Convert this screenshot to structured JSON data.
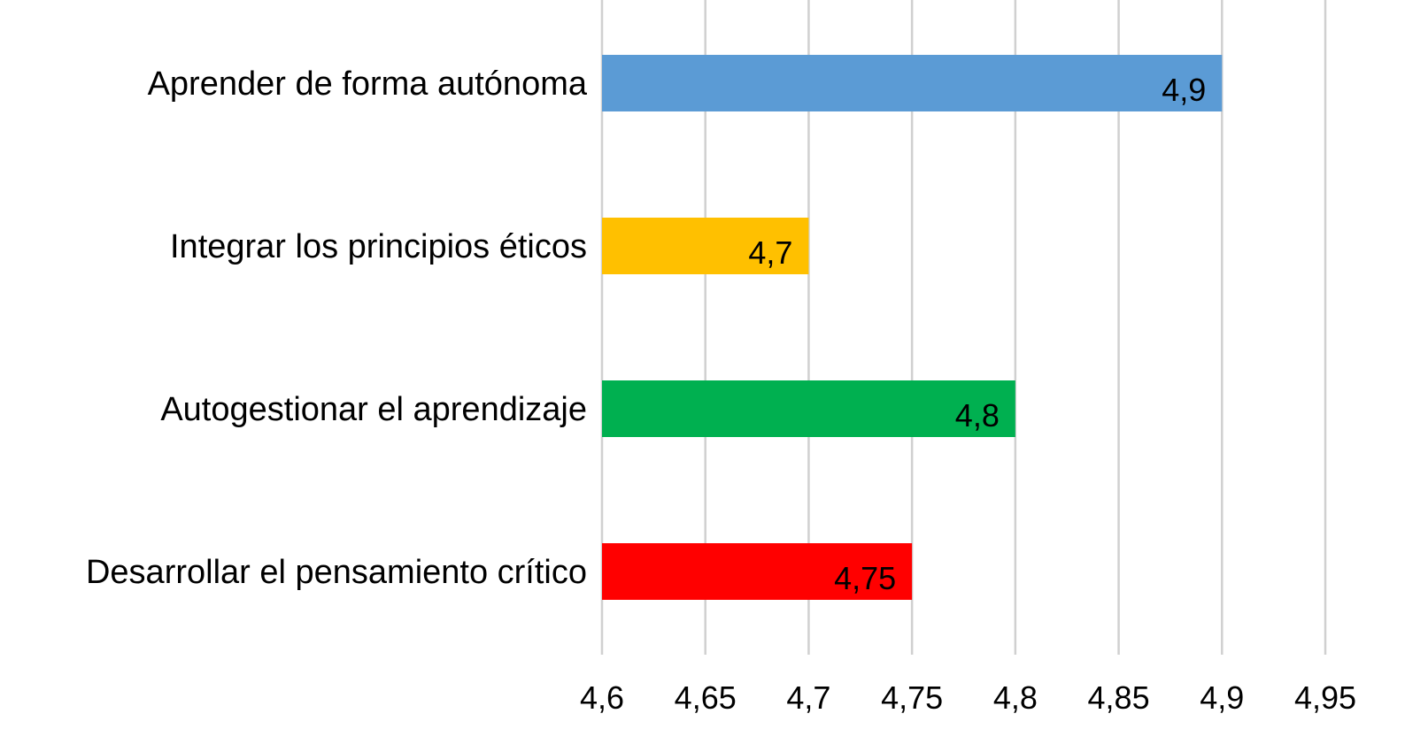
{
  "chart_data": {
    "type": "bar",
    "orientation": "horizontal",
    "title": "",
    "xlabel": "",
    "ylabel": "",
    "categories": [
      "Aprender de forma autónoma",
      "Integrar los principios éticos",
      "Autogestionar el aprendizaje",
      "Desarrollar el pensamiento crítico"
    ],
    "values": [
      4.9,
      4.7,
      4.8,
      4.75
    ],
    "value_labels": [
      "4,9",
      "4,7",
      "4,8",
      "4,75"
    ],
    "colors": [
      "#5b9bd5",
      "#ffc000",
      "#00b050",
      "#ff0000"
    ],
    "xlim": [
      4.6,
      4.95
    ],
    "x_ticks": [
      4.6,
      4.65,
      4.7,
      4.75,
      4.8,
      4.85,
      4.9,
      4.95
    ],
    "x_tick_labels": [
      "4,6",
      "4,65",
      "4,7",
      "4,75",
      "4,8",
      "4,85",
      "4,9",
      "4,95"
    ],
    "grid": true,
    "grid_color": "#d0d0d0",
    "legend": "none"
  }
}
